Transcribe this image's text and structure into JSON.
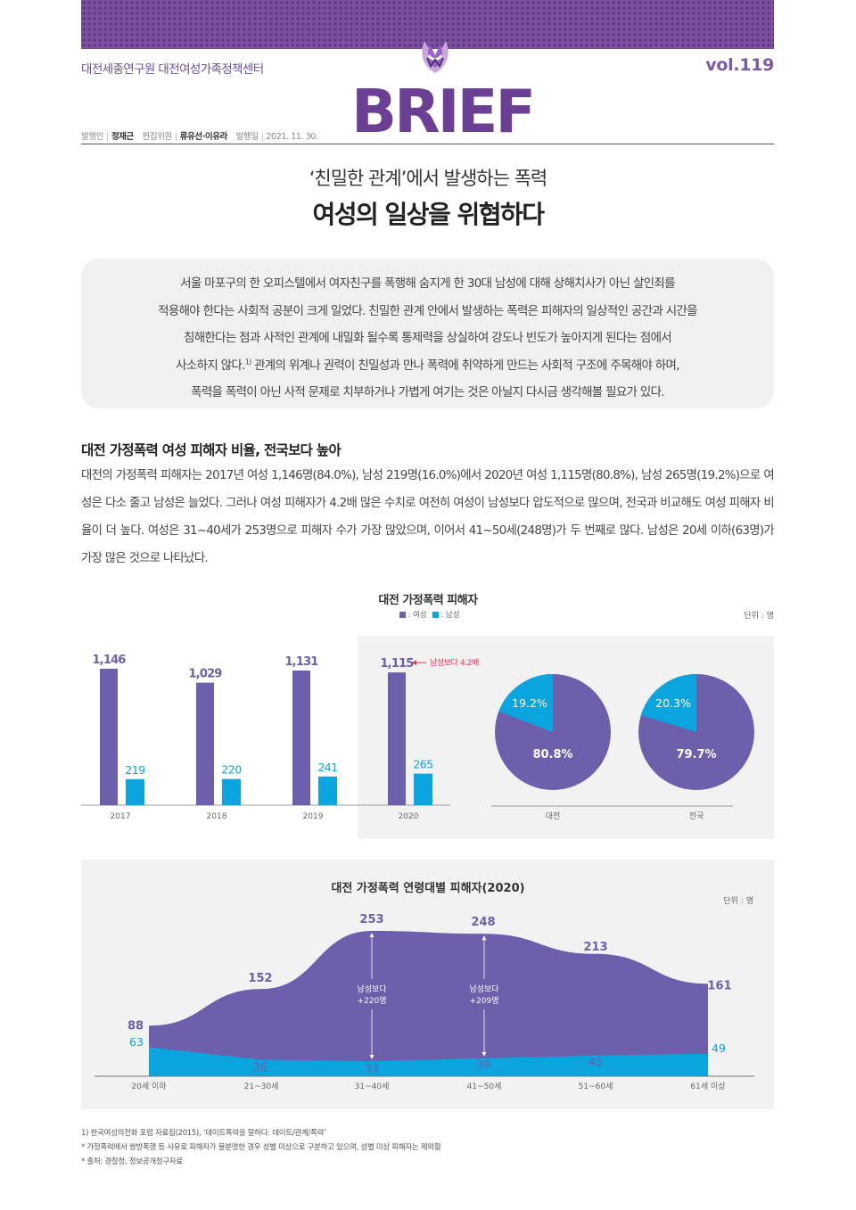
{
  "header": {
    "org_name": "대전세종연구원 대전여성가족정책센터",
    "volume": "vol.119",
    "logo_text": "BRIEF",
    "publisher_label": "발행인",
    "publisher": "정재근",
    "editor_label": "편집위원",
    "editors": "류유선·이유라",
    "date_label": "발행일",
    "date": "2021. 11. 30."
  },
  "article": {
    "subtitle": "‘친밀한 관계’에서 발생하는 폭력",
    "title": "여성의 일상을 위협하다",
    "summary_1": "서울 마포구의 한 오피스텔에서 여자친구를 폭행해 숨지게 한 30대 남성에 대해 상해치사가 아닌 살인죄를",
    "summary_2": "적용해야 한다는 사회적 공분이 크게 일었다. 친밀한 관계 안에서 발생하는 폭력은 피해자의 일상적인 공간과 시간을",
    "summary_3": "침해한다는 점과 사적인 관계에 내밀화 될수록 통제력을 상실하여 강도나 빈도가 높아지게 된다는 점에서",
    "summary_4a": "사소하지 않다.",
    "summary_4_note": "1)",
    "summary_4b": " 관계의 위계나 권력이 친밀성과 만나 폭력에 취약하게 만드는 사회적 구조에 주목해야 하며,",
    "summary_5": "폭력을 폭력이 아닌 사적 문제로 치부하거나 가볍게 여기는 것은 아닐지 다시금 생각해볼 필요가 있다.",
    "section_heading": "대전 가정폭력 여성 피해자 비율, 전국보다 높아",
    "section_body": "대전의 가정폭력 피해자는 2017년 여성 1,146명(84.0%), 남성 219명(16.0%)에서 2020년 여성 1,115명(80.8%), 남성 265명(19.2%)으로 여성은 다소 줄고 남성은 늘었다. 그러나 여성 피해자가 4.2배 많은 수치로 여전히 여성이 남성보다 압도적으로 많으며, 전국과 비교해도 여성 피해자 비율이 더 높다. 여성은 31~40세가 253명으로 피해자 수가 가장 많았으며, 이어서 41~50세(248명)가 두 번째로 많다. 남성은 20세 이하(63명)가 가장 많은 것으로 나타났다."
  },
  "colors": {
    "female": "#6d5fab",
    "male": "#0aa5de",
    "accent": "#e8344e",
    "brand": "#6a3f94"
  },
  "chart_data": [
    {
      "type": "bar",
      "title": "대전 가정폭력 피해자",
      "unit": "단위 : 명",
      "legend": [
        "여성",
        "남성"
      ],
      "legend_labels": [
        ": 여성",
        ": 남성"
      ],
      "categories": [
        "2017",
        "2018",
        "2019",
        "2020"
      ],
      "series": [
        {
          "name": "여성",
          "values": [
            1146,
            1029,
            1131,
            1115
          ],
          "labels": [
            "1,146",
            "1,029",
            "1,131",
            "1,115"
          ]
        },
        {
          "name": "남성",
          "values": [
            219,
            220,
            241,
            265
          ],
          "labels": [
            "219",
            "220",
            "241",
            "265"
          ]
        }
      ],
      "annotation": "남성보다 4.2배",
      "ylim": [
        0,
        1300
      ]
    },
    {
      "type": "pie",
      "categories": [
        "대전",
        "전국"
      ],
      "series": [
        {
          "name": "여성",
          "values": [
            80.8,
            79.7
          ],
          "labels": [
            "80.8%",
            "79.7%"
          ]
        },
        {
          "name": "남성",
          "values": [
            19.2,
            20.3
          ],
          "labels": [
            "19.2%",
            "20.3%"
          ]
        }
      ]
    },
    {
      "type": "area",
      "title": "대전 가정폭력 연령대별 피해자(2020)",
      "unit": "단위 : 명",
      "categories": [
        "20세 이하",
        "21~30세",
        "31~40세",
        "41~50세",
        "51~60세",
        "61세 이상"
      ],
      "series": [
        {
          "name": "여성",
          "values": [
            88,
            152,
            253,
            248,
            213,
            161
          ]
        },
        {
          "name": "남성",
          "values": [
            63,
            36,
            33,
            39,
            45,
            49
          ]
        }
      ],
      "annotations": [
        {
          "category": "31~40세",
          "line1": "남성보다",
          "line2": "+220명"
        },
        {
          "category": "41~50세",
          "line1": "남성보다",
          "line2": "+209명"
        }
      ],
      "ylim": [
        0,
        253
      ]
    }
  ],
  "footnotes": {
    "note_1": "1)   한국여성의전화 포럼 자료집(2015), ‘데이트폭력을 말하다: 데이트/관계/폭력’",
    "note_2": "* 가정폭력에서 쌍방폭행 등 사유로 피해자가 불분명한 경우 성별 미상으로 구분하고 있으며, 성별 미상 피해자는 제외함",
    "note_3": "* 출처: 경찰청, 정보공개청구자료"
  }
}
